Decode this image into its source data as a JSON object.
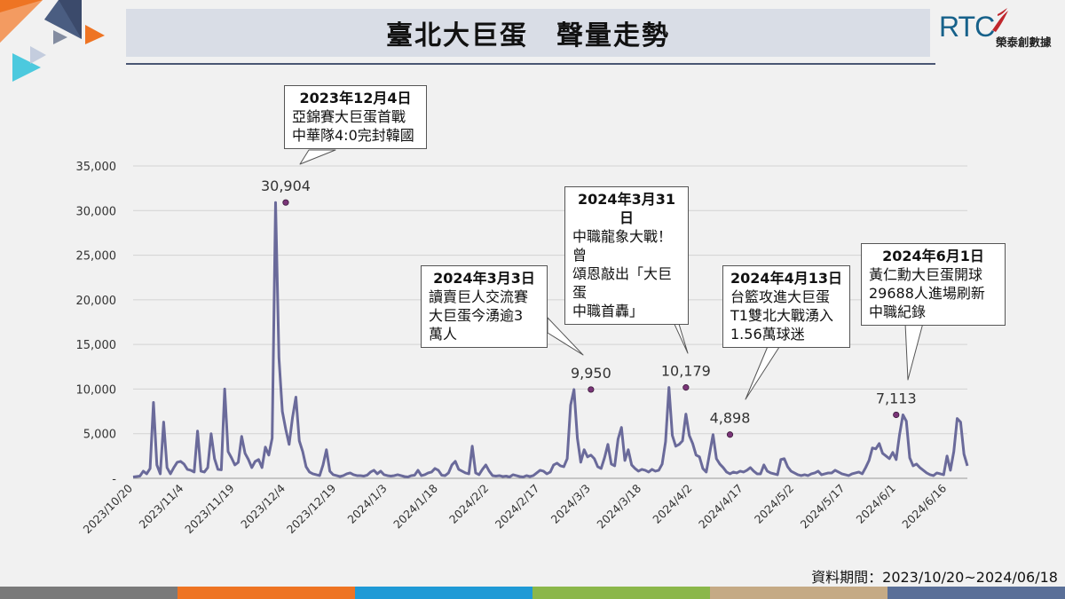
{
  "header": {
    "title": "臺北大巨蛋　聲量走勢",
    "brand_mark": "RTC",
    "brand_name": "榮泰創數據"
  },
  "source_note": "資料期間：2023/10/20~2024/06/18",
  "footer_colors": [
    "#7a7a7a",
    "#ee7423",
    "#1f9ad6",
    "#8bb74a",
    "#c5aa85",
    "#5a6f98"
  ],
  "colors": {
    "line": "#6a6a9a",
    "marker": "#7a3578",
    "title_bg": "#d9dde6",
    "rule": "#4a5673"
  },
  "callouts": [
    {
      "date": "2023年12月4日",
      "lines": [
        "亞錦賽大巨蛋首戰",
        "中華隊4:0完封韓國"
      ]
    },
    {
      "date": "2024年3月3日",
      "lines": [
        "讀賣巨人交流賽",
        "大巨蛋今湧逾3",
        "萬人"
      ]
    },
    {
      "date": "2024年3月31日",
      "lines": [
        "中職龍象大戰！曾",
        "頌恩敲出「大巨蛋",
        "中職首轟」"
      ]
    },
    {
      "date": "2024年4月13日",
      "lines": [
        "台籃攻進大巨蛋",
        "T1雙北大戰湧入",
        "1.56萬球迷"
      ]
    },
    {
      "date": "2024年6月1日",
      "lines": [
        "黃仁勳大巨蛋開球",
        "29688人進場刷新",
        "中職紀錄"
      ]
    }
  ],
  "chart_data": {
    "type": "line",
    "start_date": "2023/10/20",
    "ylim": [
      0,
      35000
    ],
    "yticks": [
      "-",
      "5,000",
      "10,000",
      "15,000",
      "20,000",
      "25,000",
      "30,000",
      "35,000"
    ],
    "xticks": [
      "2023/10/20",
      "2023/11/4",
      "2023/11/19",
      "2023/12/4",
      "2023/12/19",
      "2024/1/3",
      "2024/1/18",
      "2024/2/2",
      "2024/2/17",
      "2024/3/3",
      "2024/3/18",
      "2024/4/2",
      "2024/4/17",
      "2024/5/2",
      "2024/5/17",
      "2024/6/1",
      "2024/6/16"
    ],
    "grid": true,
    "peaks": [
      {
        "date": "2023/12/4",
        "value": 30904,
        "label": "30,904"
      },
      {
        "date": "2024/3/3",
        "value": 9950,
        "label": "9,950"
      },
      {
        "date": "2024/3/31",
        "value": 10179,
        "label": "10,179"
      },
      {
        "date": "2024/4/13",
        "value": 4898,
        "label": "4,898"
      },
      {
        "date": "2024/6/1",
        "value": 7113,
        "label": "7,113"
      }
    ],
    "series": [
      {
        "values": [
          150,
          200,
          250,
          800,
          500,
          1100,
          8500,
          1500,
          500,
          6300,
          1200,
          500,
          1200,
          1800,
          1900,
          1600,
          1000,
          900,
          700,
          5300,
          800,
          700,
          1200,
          5000,
          2200,
          1000,
          950,
          10000,
          3000,
          2300,
          1500,
          1800,
          4700,
          2800,
          2100,
          1200,
          1900,
          2100,
          1200,
          3500,
          2600,
          4500,
          30904,
          13500,
          7500,
          5500,
          3800,
          6800,
          9100,
          4200,
          3000,
          1300,
          700,
          500,
          400,
          300,
          1500,
          3200,
          800,
          400,
          300,
          200,
          300,
          500,
          600,
          400,
          300,
          300,
          250,
          350,
          700,
          900,
          500,
          800,
          400,
          300,
          250,
          300,
          400,
          300,
          200,
          150,
          300,
          350,
          900,
          300,
          400,
          600,
          700,
          1100,
          900,
          350,
          300,
          600,
          1500,
          1900,
          1000,
          800,
          600,
          500,
          3600,
          600,
          400,
          1000,
          1500,
          800,
          300,
          250,
          300,
          200,
          250,
          150,
          400,
          300,
          200,
          150,
          300,
          200,
          300,
          600,
          900,
          800,
          500,
          700,
          1500,
          1700,
          1400,
          1300,
          2200,
          8200,
          9950,
          4500,
          1800,
          3200,
          2400,
          2600,
          2200,
          1300,
          1100,
          2300,
          3800,
          1600,
          1400,
          4400,
          5700,
          2000,
          3200,
          1500,
          1100,
          800,
          1000,
          900,
          700,
          1000,
          800,
          900,
          1600,
          4100,
          10179,
          4800,
          3600,
          3800,
          4200,
          7200,
          4800,
          3900,
          2600,
          2400,
          1100,
          700,
          2800,
          4898,
          2200,
          1600,
          1200,
          700,
          500,
          700,
          600,
          800,
          700,
          900,
          1200,
          800,
          500,
          500,
          1500,
          800,
          600,
          500,
          400,
          2100,
          2200,
          1300,
          800,
          600,
          400,
          300,
          400,
          300,
          500,
          600,
          800,
          400,
          500,
          600,
          600,
          900,
          700,
          500,
          400,
          300,
          500,
          600,
          700,
          500,
          1200,
          2000,
          3400,
          3300,
          3900,
          2800,
          2500,
          2200,
          2900,
          2100,
          4900,
          7113,
          6400,
          2300,
          1400,
          1600,
          1200,
          900,
          600,
          400,
          300,
          600,
          500,
          400,
          2500,
          900,
          3000,
          6700,
          6300,
          2700,
          1400
        ]
      }
    ]
  }
}
